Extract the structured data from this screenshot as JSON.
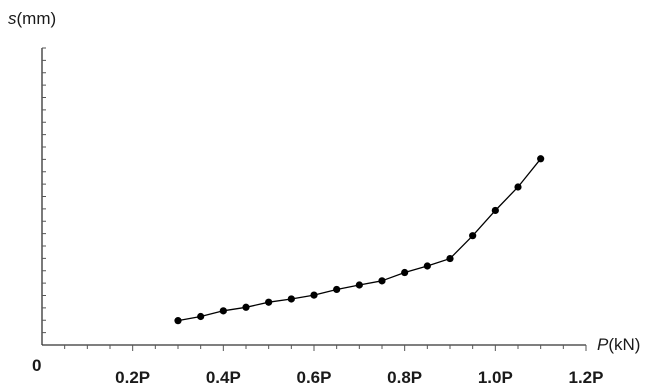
{
  "chart_data": {
    "type": "line",
    "title": "",
    "xlabel": {
      "symbol": "P",
      "unit": "(kN)"
    },
    "ylabel": {
      "symbol": "s",
      "unit": "(mm)"
    },
    "origin_label": "0",
    "xlim": [
      0,
      1.2
    ],
    "ylim": [
      0,
      1
    ],
    "x_ticks": [
      {
        "value": 0.2,
        "label": "0.2P"
      },
      {
        "value": 0.4,
        "label": "0.4P"
      },
      {
        "value": 0.6,
        "label": "0.6P"
      },
      {
        "value": 0.8,
        "label": "0.8P"
      },
      {
        "value": 1.0,
        "label": "1.0P"
      },
      {
        "value": 1.2,
        "label": "1.2P"
      }
    ],
    "y_tick_values_shown": false,
    "grid": false,
    "series": [
      {
        "marker": "filled-circle",
        "color": "#000000",
        "x": [
          0.3,
          0.35,
          0.4,
          0.45,
          0.5,
          0.55,
          0.6,
          0.65,
          0.7,
          0.75,
          0.8,
          0.85,
          0.9,
          0.95,
          1.0,
          1.05,
          1.1
        ],
        "y": [
          0.082,
          0.096,
          0.115,
          0.127,
          0.144,
          0.155,
          0.168,
          0.187,
          0.202,
          0.216,
          0.244,
          0.266,
          0.291,
          0.368,
          0.453,
          0.532,
          0.627
        ]
      }
    ]
  }
}
